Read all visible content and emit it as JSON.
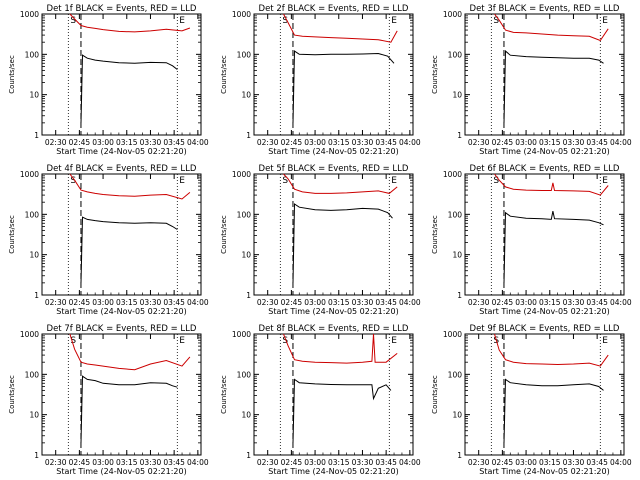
{
  "chart_data": [
    {
      "type": "line",
      "title": "Det 1f BLACK = Events, RED = LLD",
      "xlabel": "Start Time (24-Nov-05 02:21:20)",
      "ylabel": "Counts/sec",
      "yscale": "log",
      "ylim": [
        1,
        1000
      ],
      "x_ticks": [
        "02:30",
        "02:45",
        "03:00",
        "03:15",
        "03:30",
        "03:45",
        "04:00"
      ],
      "y_ticks": [
        "1",
        "10",
        "100",
        "1000"
      ],
      "markers": [
        "S",
        "E"
      ],
      "series": [
        {
          "name": "Events",
          "color": "#000000",
          "x": [
            "02:46",
            "02:47",
            "02:50",
            "02:55",
            "03:00",
            "03:10",
            "03:20",
            "03:30",
            "03:40",
            "03:44",
            "03:47"
          ],
          "y": [
            2,
            95,
            80,
            72,
            68,
            62,
            60,
            63,
            62,
            52,
            42
          ]
        },
        {
          "name": "LLD",
          "color": "#cc0000",
          "x": [
            "02:39",
            "02:42",
            "02:46",
            "02:50",
            "02:55",
            "03:00",
            "03:10",
            "03:20",
            "03:30",
            "03:40",
            "03:50",
            "03:55"
          ],
          "y": [
            1000,
            750,
            520,
            470,
            440,
            410,
            370,
            360,
            380,
            420,
            380,
            450
          ]
        }
      ]
    },
    {
      "type": "line",
      "title": "Det 2f BLACK = Events, RED = LLD",
      "xlabel": "Start Time (24-Nov-05 02:21:20)",
      "ylabel": "Counts/sec",
      "yscale": "log",
      "ylim": [
        1,
        1000
      ],
      "x_ticks": [
        "02:30",
        "02:45",
        "03:00",
        "03:15",
        "03:30",
        "03:45",
        "04:00"
      ],
      "y_ticks": [
        "1",
        "10",
        "100",
        "1000"
      ],
      "markers": [
        "S",
        "E"
      ],
      "series": [
        {
          "name": "Events",
          "color": "#000000",
          "x": [
            "02:46",
            "02:47",
            "02:50",
            "03:00",
            "03:10",
            "03:20",
            "03:30",
            "03:40",
            "03:46",
            "03:50"
          ],
          "y": [
            2,
            120,
            100,
            98,
            100,
            100,
            102,
            105,
            90,
            60
          ]
        },
        {
          "name": "LLD",
          "color": "#cc0000",
          "x": [
            "02:40",
            "02:43",
            "02:47",
            "02:52",
            "03:00",
            "03:10",
            "03:20",
            "03:30",
            "03:40",
            "03:48",
            "03:52"
          ],
          "y": [
            1000,
            600,
            300,
            280,
            270,
            260,
            250,
            240,
            230,
            200,
            380
          ]
        }
      ]
    },
    {
      "type": "line",
      "title": "Det 3f BLACK = Events, RED = LLD",
      "xlabel": "Start Time (24-Nov-05 02:21:20)",
      "ylabel": "Counts/sec",
      "yscale": "log",
      "ylim": [
        1,
        1000
      ],
      "x_ticks": [
        "02:30",
        "02:45",
        "03:00",
        "03:15",
        "03:30",
        "03:45",
        "04:00"
      ],
      "y_ticks": [
        "1",
        "10",
        "100",
        "1000"
      ],
      "markers": [
        "S",
        "E"
      ],
      "series": [
        {
          "name": "Events",
          "color": "#000000",
          "x": [
            "02:46",
            "02:47",
            "02:50",
            "03:00",
            "03:10",
            "03:20",
            "03:30",
            "03:40",
            "03:46",
            "03:49"
          ],
          "y": [
            2,
            120,
            95,
            88,
            85,
            82,
            80,
            80,
            72,
            60
          ]
        },
        {
          "name": "LLD",
          "color": "#cc0000",
          "x": [
            "02:40",
            "02:43",
            "02:47",
            "02:52",
            "03:00",
            "03:10",
            "03:20",
            "03:30",
            "03:40",
            "03:47",
            "03:52"
          ],
          "y": [
            1000,
            700,
            400,
            350,
            340,
            320,
            300,
            290,
            280,
            220,
            430
          ]
        }
      ]
    },
    {
      "type": "line",
      "title": "Det 4f BLACK = Events, RED = LLD",
      "xlabel": "Start Time (24-Nov-05 02:21:20)",
      "ylabel": "Counts/sec",
      "yscale": "log",
      "ylim": [
        1,
        1000
      ],
      "x_ticks": [
        "02:30",
        "02:45",
        "03:00",
        "03:15",
        "03:30",
        "03:45",
        "04:00"
      ],
      "y_ticks": [
        "1",
        "10",
        "100",
        "1000"
      ],
      "markers": [
        "S",
        "E"
      ],
      "series": [
        {
          "name": "Events",
          "color": "#000000",
          "x": [
            "02:46",
            "02:47",
            "02:50",
            "02:55",
            "03:00",
            "03:10",
            "03:20",
            "03:30",
            "03:40",
            "03:44",
            "03:47"
          ],
          "y": [
            2,
            85,
            75,
            70,
            66,
            62,
            60,
            62,
            60,
            50,
            42
          ]
        },
        {
          "name": "LLD",
          "color": "#cc0000",
          "x": [
            "02:39",
            "02:42",
            "02:46",
            "02:50",
            "02:55",
            "03:00",
            "03:10",
            "03:20",
            "03:30",
            "03:40",
            "03:50",
            "03:55"
          ],
          "y": [
            1000,
            700,
            400,
            360,
            330,
            310,
            290,
            280,
            300,
            310,
            240,
            350
          ]
        }
      ]
    },
    {
      "type": "line",
      "title": "Det 5f BLACK = Events, RED = LLD",
      "xlabel": "Start Time (24-Nov-05 02:21:20)",
      "ylabel": "Counts/sec",
      "yscale": "log",
      "ylim": [
        1,
        1000
      ],
      "x_ticks": [
        "02:30",
        "02:45",
        "03:00",
        "03:15",
        "03:30",
        "03:45",
        "04:00"
      ],
      "y_ticks": [
        "1",
        "10",
        "100",
        "1000"
      ],
      "markers": [
        "S",
        "E"
      ],
      "series": [
        {
          "name": "Events",
          "color": "#000000",
          "x": [
            "02:46",
            "02:47",
            "02:50",
            "03:00",
            "03:10",
            "03:20",
            "03:30",
            "03:40",
            "03:46",
            "03:49"
          ],
          "y": [
            2,
            180,
            150,
            130,
            125,
            130,
            140,
            135,
            110,
            80
          ]
        },
        {
          "name": "LLD",
          "color": "#cc0000",
          "x": [
            "02:40",
            "02:43",
            "02:47",
            "02:52",
            "03:00",
            "03:10",
            "03:20",
            "03:30",
            "03:40",
            "03:47",
            "03:52"
          ],
          "y": [
            1000,
            750,
            420,
            360,
            330,
            330,
            340,
            360,
            380,
            330,
            480
          ]
        }
      ]
    },
    {
      "type": "line",
      "title": "Det 6f BLACK = Events, RED = LLD",
      "xlabel": "Start Time (24-Nov-05 02:21:20)",
      "ylabel": "Counts/sec",
      "yscale": "log",
      "ylim": [
        1,
        1000
      ],
      "x_ticks": [
        "02:30",
        "02:45",
        "03:00",
        "03:15",
        "03:30",
        "03:45",
        "04:00"
      ],
      "y_ticks": [
        "1",
        "10",
        "100",
        "1000"
      ],
      "markers": [
        "S",
        "E"
      ],
      "series": [
        {
          "name": "Events",
          "color": "#000000",
          "x": [
            "02:46",
            "02:47",
            "02:50",
            "03:00",
            "03:10",
            "03:16",
            "03:17",
            "03:18",
            "03:30",
            "03:40",
            "03:46",
            "03:49"
          ],
          "y": [
            2,
            110,
            90,
            80,
            78,
            75,
            120,
            78,
            75,
            72,
            62,
            55
          ]
        },
        {
          "name": "LLD",
          "color": "#cc0000",
          "x": [
            "02:40",
            "02:43",
            "02:47",
            "02:52",
            "03:00",
            "03:10",
            "03:16",
            "03:17",
            "03:18",
            "03:30",
            "03:40",
            "03:47",
            "03:52"
          ],
          "y": [
            1000,
            700,
            480,
            420,
            400,
            390,
            390,
            600,
            390,
            380,
            370,
            300,
            520
          ]
        }
      ]
    },
    {
      "type": "line",
      "title": "Det 7f BLACK = Events, RED = LLD",
      "xlabel": "Start Time (24-Nov-05 02:21:20)",
      "ylabel": "Counts/sec",
      "yscale": "log",
      "ylim": [
        1,
        1000
      ],
      "x_ticks": [
        "02:30",
        "02:45",
        "03:00",
        "03:15",
        "03:30",
        "03:45",
        "04:00"
      ],
      "y_ticks": [
        "1",
        "10",
        "100",
        "1000"
      ],
      "markers": [
        "S",
        "E"
      ],
      "series": [
        {
          "name": "Events",
          "color": "#000000",
          "x": [
            "02:46",
            "02:47",
            "02:50",
            "02:55",
            "03:00",
            "03:10",
            "03:20",
            "03:30",
            "03:40",
            "03:44",
            "03:47"
          ],
          "y": [
            2,
            90,
            75,
            70,
            60,
            55,
            55,
            62,
            60,
            52,
            48
          ]
        },
        {
          "name": "LLD",
          "color": "#cc0000",
          "x": [
            "02:39",
            "02:42",
            "02:46",
            "02:50",
            "02:55",
            "03:00",
            "03:10",
            "03:20",
            "03:30",
            "03:40",
            "03:50",
            "03:55"
          ],
          "y": [
            1000,
            420,
            200,
            180,
            170,
            160,
            140,
            130,
            180,
            220,
            160,
            270
          ]
        }
      ]
    },
    {
      "type": "line",
      "title": "Det 8f BLACK = Events, RED = LLD",
      "xlabel": "Start Time (24-Nov-05 02:21:20)",
      "ylabel": "Counts/sec",
      "yscale": "log",
      "ylim": [
        1,
        1000
      ],
      "x_ticks": [
        "02:30",
        "02:45",
        "03:00",
        "03:15",
        "03:30",
        "03:45",
        "04:00"
      ],
      "y_ticks": [
        "1",
        "10",
        "100",
        "1000"
      ],
      "markers": [
        "S",
        "E"
      ],
      "series": [
        {
          "name": "Events",
          "color": "#000000",
          "x": [
            "02:46",
            "02:47",
            "02:50",
            "03:00",
            "03:10",
            "03:20",
            "03:30",
            "03:36",
            "03:37",
            "03:40",
            "03:45",
            "03:48"
          ],
          "y": [
            2,
            75,
            62,
            58,
            56,
            55,
            55,
            55,
            25,
            45,
            55,
            40
          ]
        },
        {
          "name": "LLD",
          "color": "#cc0000",
          "x": [
            "02:40",
            "02:43",
            "02:47",
            "02:52",
            "03:00",
            "03:10",
            "03:20",
            "03:30",
            "03:36",
            "03:37",
            "03:38",
            "03:45",
            "03:52"
          ],
          "y": [
            1000,
            500,
            230,
            210,
            200,
            195,
            190,
            200,
            210,
            1000,
            200,
            200,
            330
          ]
        }
      ]
    },
    {
      "type": "line",
      "title": "Det 9f BLACK = Events, RED = LLD",
      "xlabel": "Start Time (24-Nov-05 02:21:20)",
      "ylabel": "Counts/sec",
      "yscale": "log",
      "ylim": [
        1,
        1000
      ],
      "x_ticks": [
        "02:30",
        "02:45",
        "03:00",
        "03:15",
        "03:30",
        "03:45",
        "04:00"
      ],
      "y_ticks": [
        "1",
        "10",
        "100",
        "1000"
      ],
      "markers": [
        "S",
        "E"
      ],
      "series": [
        {
          "name": "Events",
          "color": "#000000",
          "x": [
            "02:46",
            "02:47",
            "02:50",
            "03:00",
            "03:10",
            "03:20",
            "03:30",
            "03:40",
            "03:46",
            "03:49"
          ],
          "y": [
            2,
            75,
            62,
            55,
            52,
            52,
            55,
            58,
            50,
            40
          ]
        },
        {
          "name": "LLD",
          "color": "#cc0000",
          "x": [
            "02:40",
            "02:43",
            "02:47",
            "02:52",
            "03:00",
            "03:10",
            "03:20",
            "03:30",
            "03:40",
            "03:47",
            "03:52"
          ],
          "y": [
            1000,
            400,
            230,
            200,
            185,
            180,
            175,
            180,
            190,
            160,
            300
          ]
        }
      ]
    }
  ]
}
